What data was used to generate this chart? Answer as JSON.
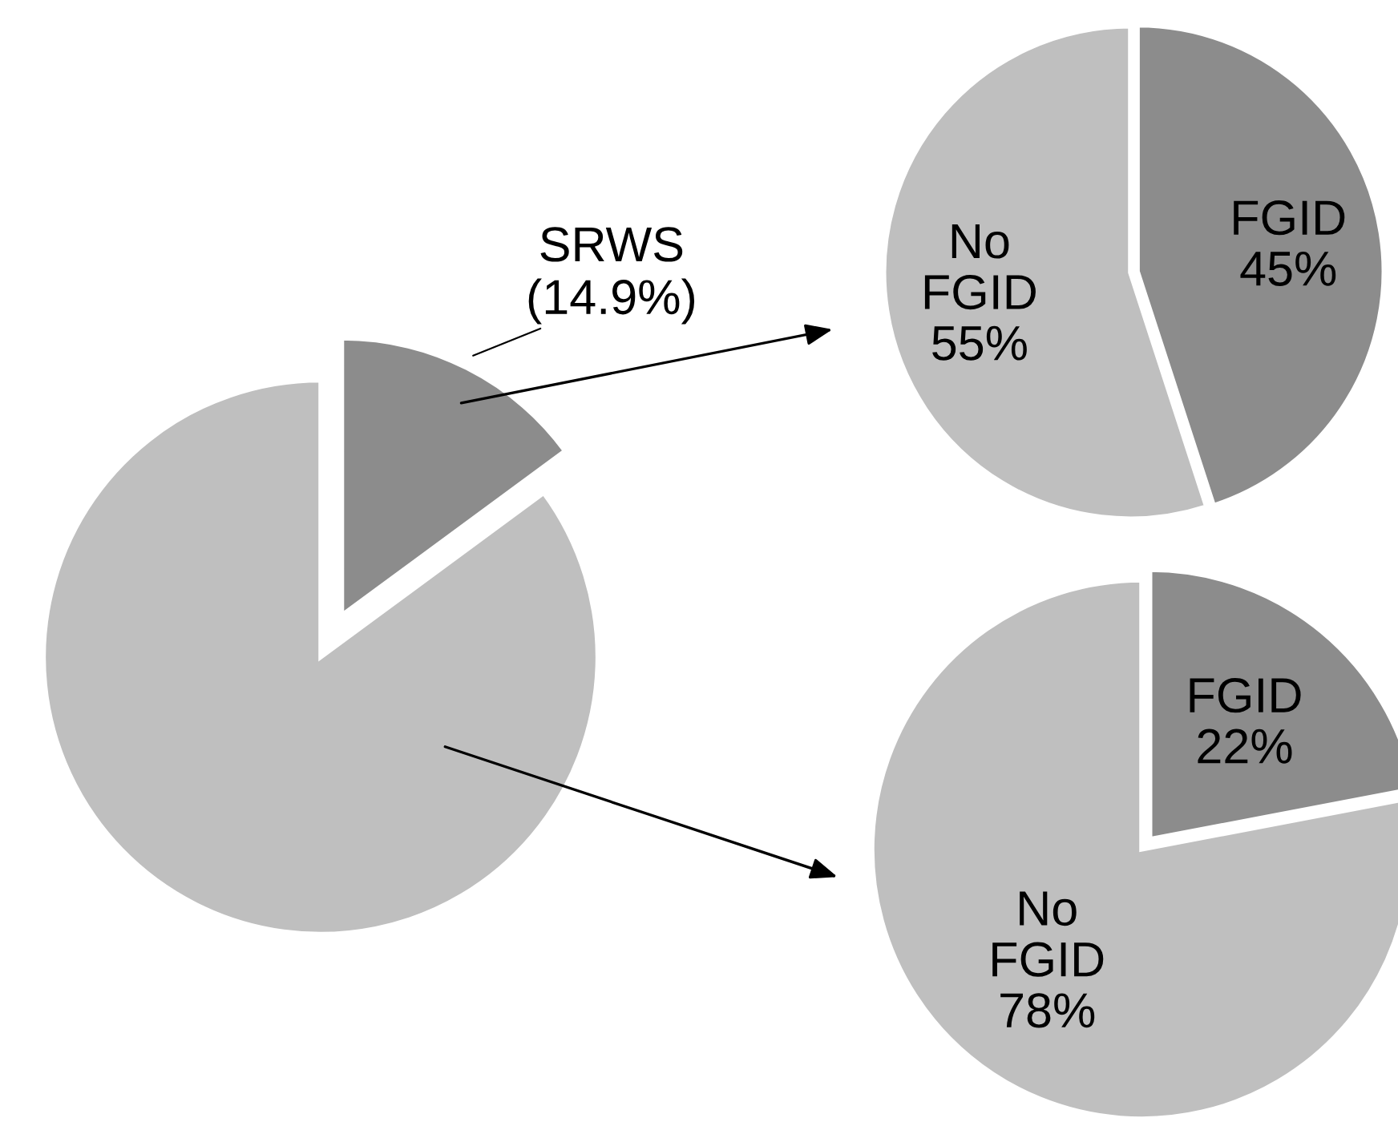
{
  "chart_data": [
    {
      "type": "pie",
      "categories": [
        "SRWS",
        null
      ],
      "values": [
        14.9,
        85.1
      ],
      "colors": [
        "#8c8c8c",
        "#bfbfbf"
      ],
      "value_labels": [
        "(14.9%)",
        null
      ]
    },
    {
      "type": "pie",
      "categories": [
        "FGID",
        "No FGID"
      ],
      "values": [
        45,
        55
      ],
      "colors": [
        "#8c8c8c",
        "#bfbfbf"
      ],
      "value_labels": [
        "45%",
        "55%"
      ]
    },
    {
      "type": "pie",
      "categories": [
        "FGID",
        "No FGID"
      ],
      "values": [
        22,
        78
      ],
      "colors": [
        "#8c8c8c",
        "#bfbfbf"
      ],
      "value_labels": [
        "22%",
        "78%"
      ]
    }
  ]
}
